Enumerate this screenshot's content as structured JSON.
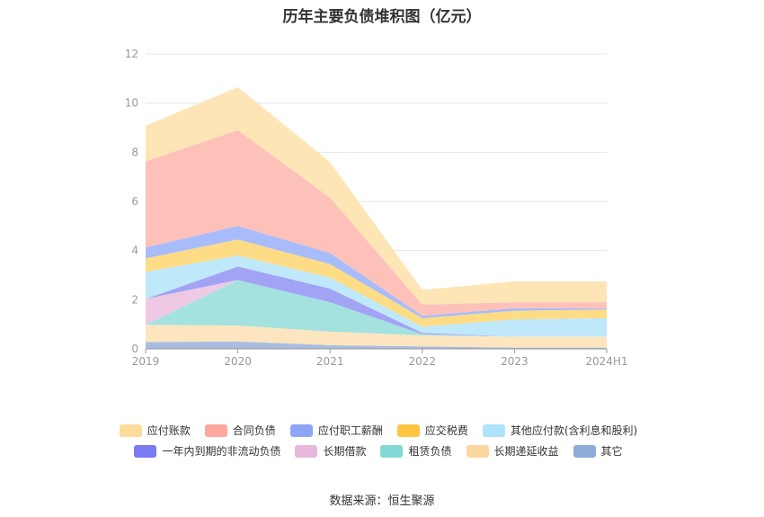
{
  "title": "历年主要负债堆积图（亿元）",
  "source": "数据来源：恒生聚源",
  "chart_data": {
    "type": "area",
    "stacked": true,
    "title": "历年主要负债堆积图（亿元）",
    "categories": [
      "2019",
      "2020",
      "2021",
      "2022",
      "2023",
      "2024H1"
    ],
    "ylim": [
      0,
      12
    ],
    "yticks": [
      "0",
      "2",
      "4",
      "6",
      "8",
      "10",
      "12"
    ],
    "grid": true,
    "legend_position": "bottom",
    "series": [
      {
        "name": "其它",
        "color": "#a9bde0",
        "values": [
          0.28,
          0.3,
          0.15,
          0.1,
          0.05,
          0.05
        ]
      },
      {
        "name": "长期递延收益",
        "color": "#fde5c0",
        "values": [
          0.7,
          0.65,
          0.55,
          0.45,
          0.45,
          0.45
        ]
      },
      {
        "name": "租赁负债",
        "color": "#a3e2df",
        "values": [
          0.0,
          1.85,
          1.2,
          0.05,
          0.0,
          0.0
        ]
      },
      {
        "name": "长期借款",
        "color": "#efc9e4",
        "values": [
          1.05,
          0.0,
          0.0,
          0.0,
          0.0,
          0.0
        ]
      },
      {
        "name": "一年内到期的非流动负债",
        "color": "#a3a3f5",
        "values": [
          0.0,
          0.55,
          0.55,
          0.05,
          0.0,
          0.0
        ]
      },
      {
        "name": "其他应付款(含利息和股利)",
        "color": "#bfe8fb",
        "values": [
          1.1,
          0.45,
          0.45,
          0.25,
          0.7,
          0.75
        ]
      },
      {
        "name": "应交税费",
        "color": "#fddc85",
        "values": [
          0.55,
          0.65,
          0.55,
          0.35,
          0.35,
          0.35
        ]
      },
      {
        "name": "应付职工薪酬",
        "color": "#a8bcfb",
        "values": [
          0.45,
          0.55,
          0.45,
          0.1,
          0.1,
          0.05
        ]
      },
      {
        "name": "合同负债",
        "color": "#fdc1ba",
        "values": [
          3.5,
          3.9,
          2.25,
          0.45,
          0.25,
          0.25
        ]
      },
      {
        "name": "应付账款",
        "color": "#fde5b6",
        "values": [
          1.45,
          1.75,
          1.45,
          0.6,
          0.85,
          0.85
        ]
      }
    ]
  },
  "legend": {
    "row1": [
      "应付账款",
      "合同负债",
      "应付职工薪酬",
      "应交税费",
      "其他应付款(含利息和股利)"
    ],
    "row2": [
      "一年内到期的非流动负债",
      "长期借款",
      "租赁负债",
      "长期递延收益",
      "其它"
    ],
    "row1_colors": [
      "#fddc9a",
      "#fda79e",
      "#8ea5f7",
      "#fdc540",
      "#ade3fb"
    ],
    "row2_colors": [
      "#7a7af2",
      "#e8b8da",
      "#84d8d4",
      "#fdd7a0",
      "#8fadda"
    ]
  }
}
